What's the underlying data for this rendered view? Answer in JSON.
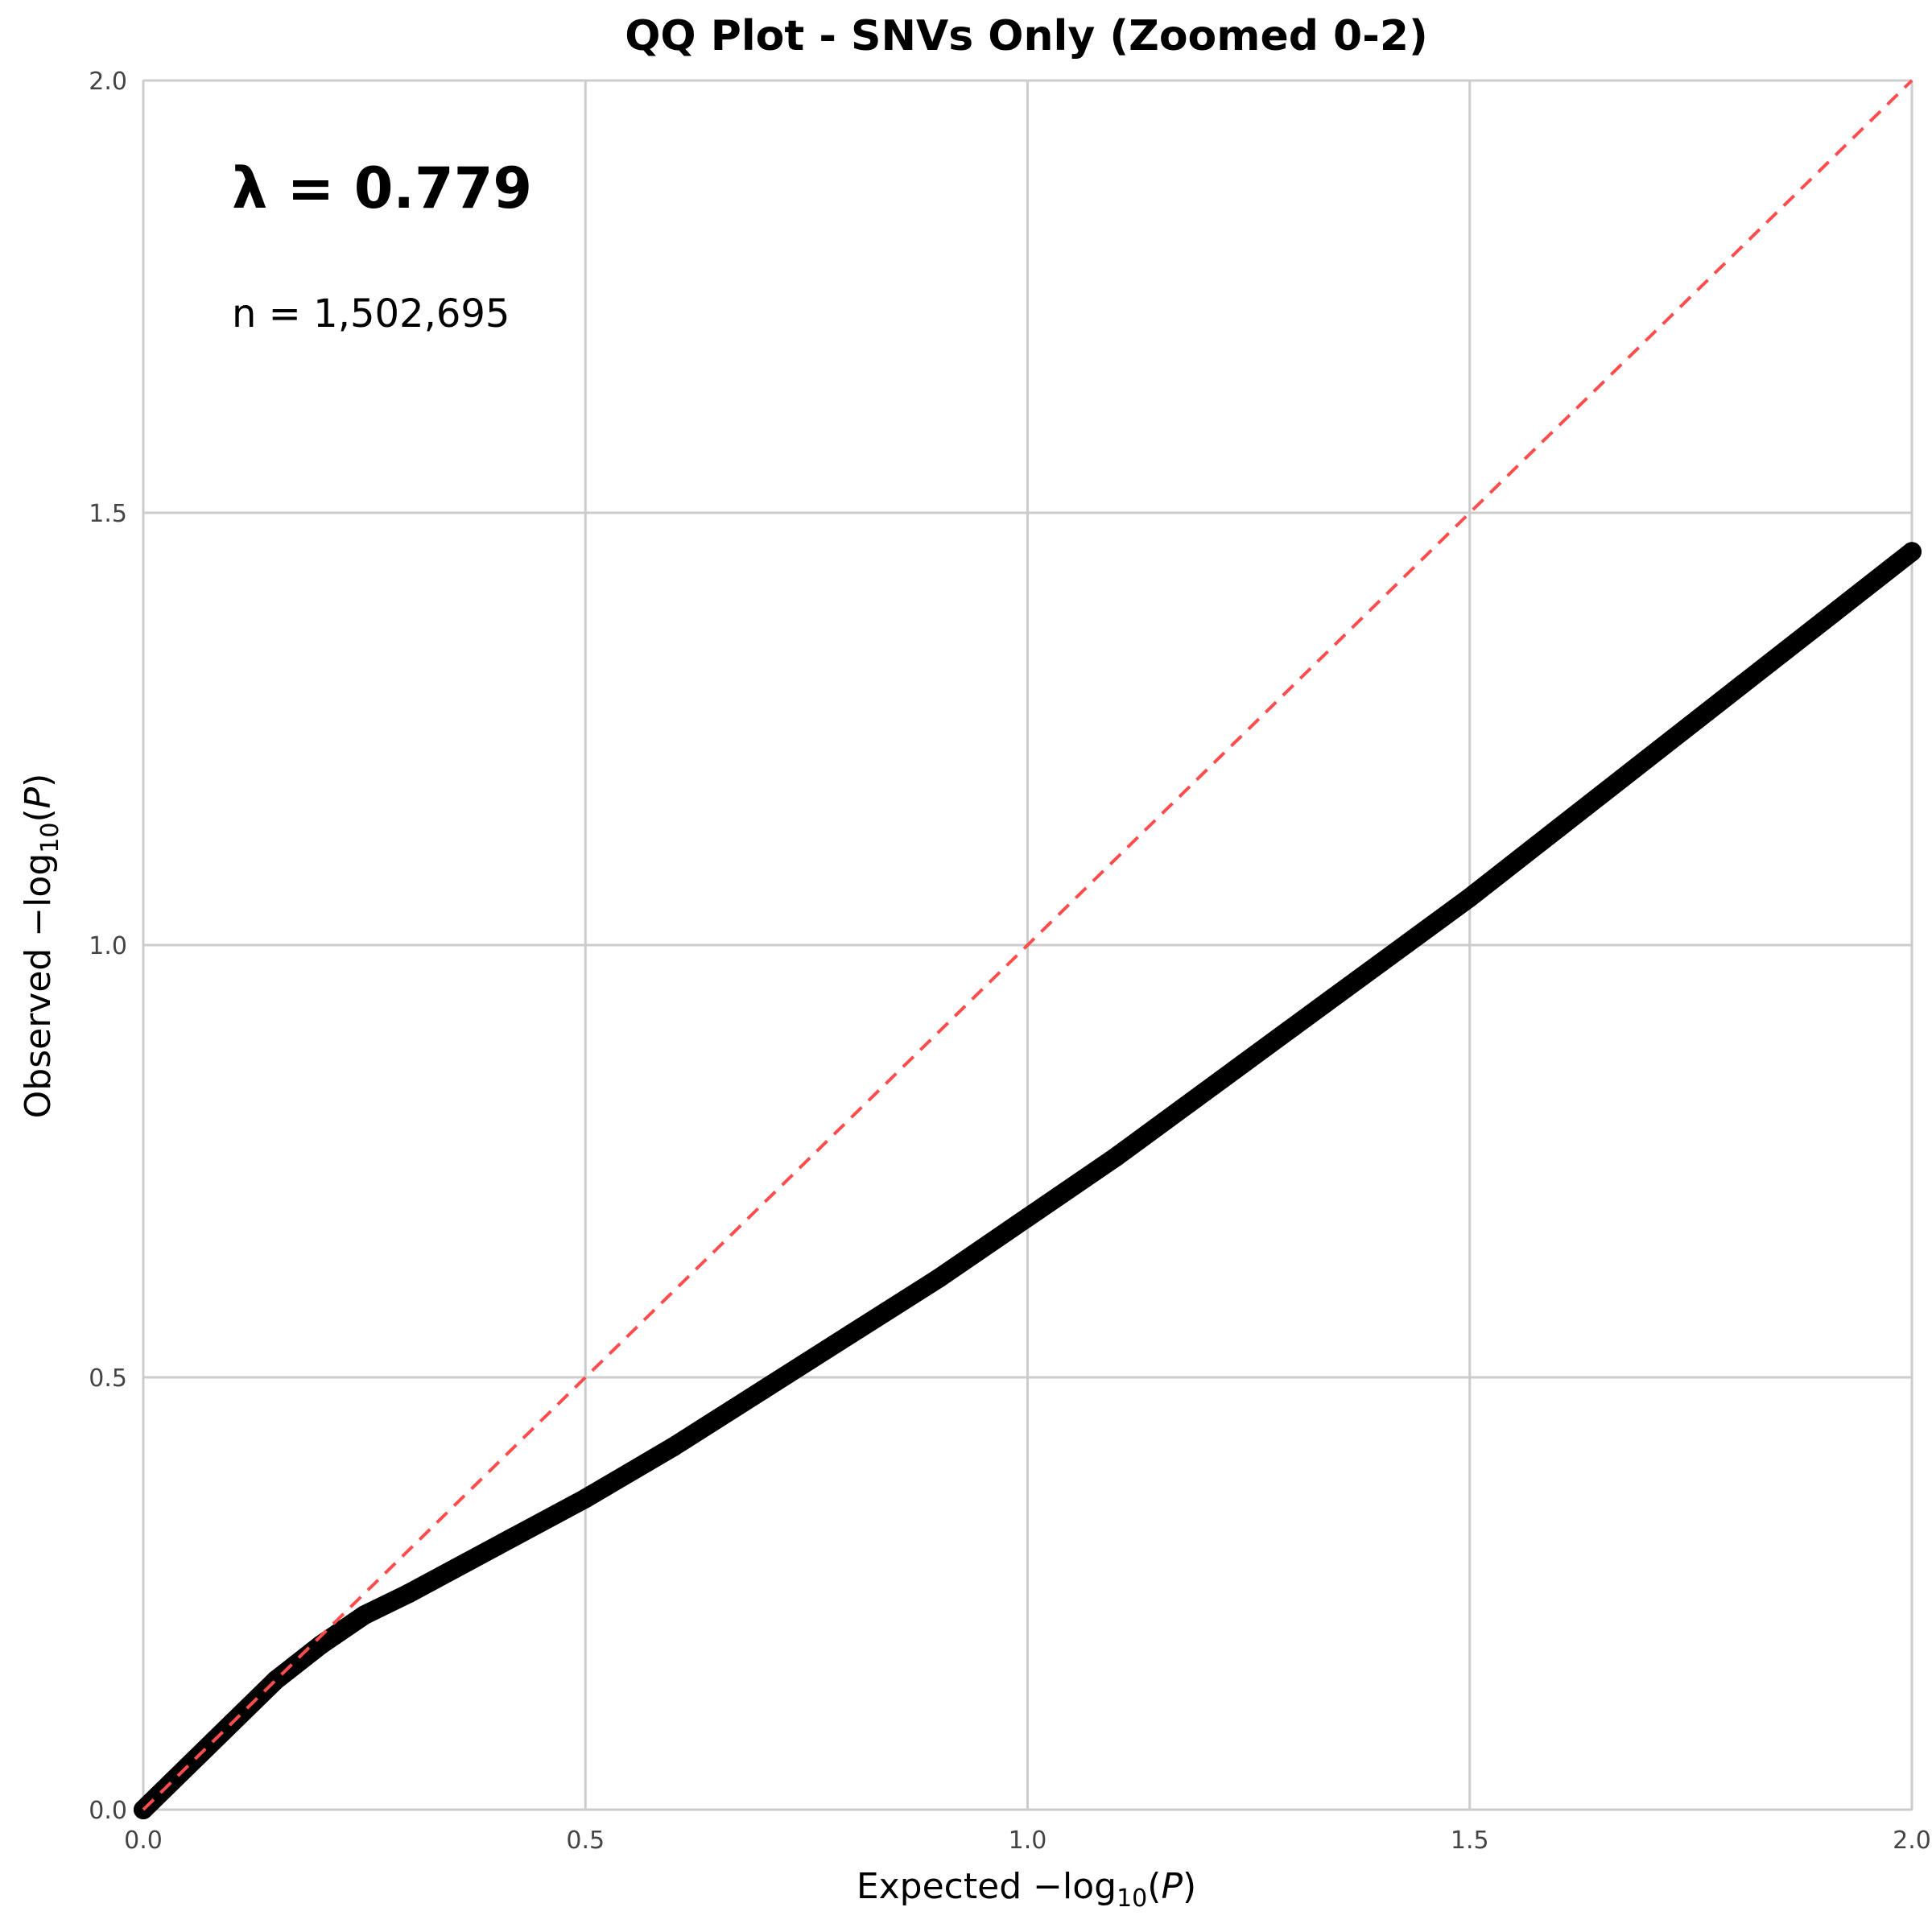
{
  "chart_data": {
    "type": "scatter",
    "title": "QQ Plot - SNVs Only (Zoomed 0-2)",
    "xlabel_prefix": "Expected ",
    "xlabel_math": "−log",
    "xlabel_sub": "10",
    "xlabel_tail_open": "(",
    "xlabel_var": "P",
    "xlabel_tail_close": ")",
    "ylabel_prefix": "Observed ",
    "ylabel_math": "−log",
    "ylabel_sub": "10",
    "ylabel_tail_open": "(",
    "ylabel_var": "P",
    "ylabel_tail_close": ")",
    "xlim": [
      0,
      2
    ],
    "ylim": [
      0,
      2
    ],
    "xticks": [
      0.0,
      0.5,
      1.0,
      1.5,
      2.0
    ],
    "yticks": [
      0.0,
      0.5,
      1.0,
      1.5,
      2.0
    ],
    "xtick_labels": [
      "0.0",
      "0.5",
      "1.0",
      "1.5",
      "2.0"
    ],
    "ytick_labels": [
      "0.0",
      "0.5",
      "1.0",
      "1.5",
      "2.0"
    ],
    "grid": true,
    "annotations": {
      "lambda": "λ = 0.779",
      "n": "n = 1,502,695"
    },
    "series": [
      {
        "kind": "observed",
        "color": "#000000",
        "x": [
          0.0,
          0.05,
          0.1,
          0.15,
          0.2,
          0.25,
          0.3,
          0.4,
          0.5,
          0.6,
          0.7,
          0.8,
          0.9,
          1.0,
          1.1,
          1.2,
          1.3,
          1.4,
          1.5,
          1.6,
          1.7,
          1.8,
          1.9,
          2.0
        ],
        "y": [
          0.0,
          0.05,
          0.1,
          0.15,
          0.19,
          0.225,
          0.25,
          0.305,
          0.36,
          0.42,
          0.485,
          0.55,
          0.615,
          0.685,
          0.755,
          0.83,
          0.905,
          0.98,
          1.055,
          1.135,
          1.215,
          1.295,
          1.375,
          1.455
        ]
      },
      {
        "kind": "expected-diagonal",
        "color": "#ff4d4d",
        "x": [
          0,
          2
        ],
        "y": [
          0,
          2
        ]
      }
    ]
  }
}
